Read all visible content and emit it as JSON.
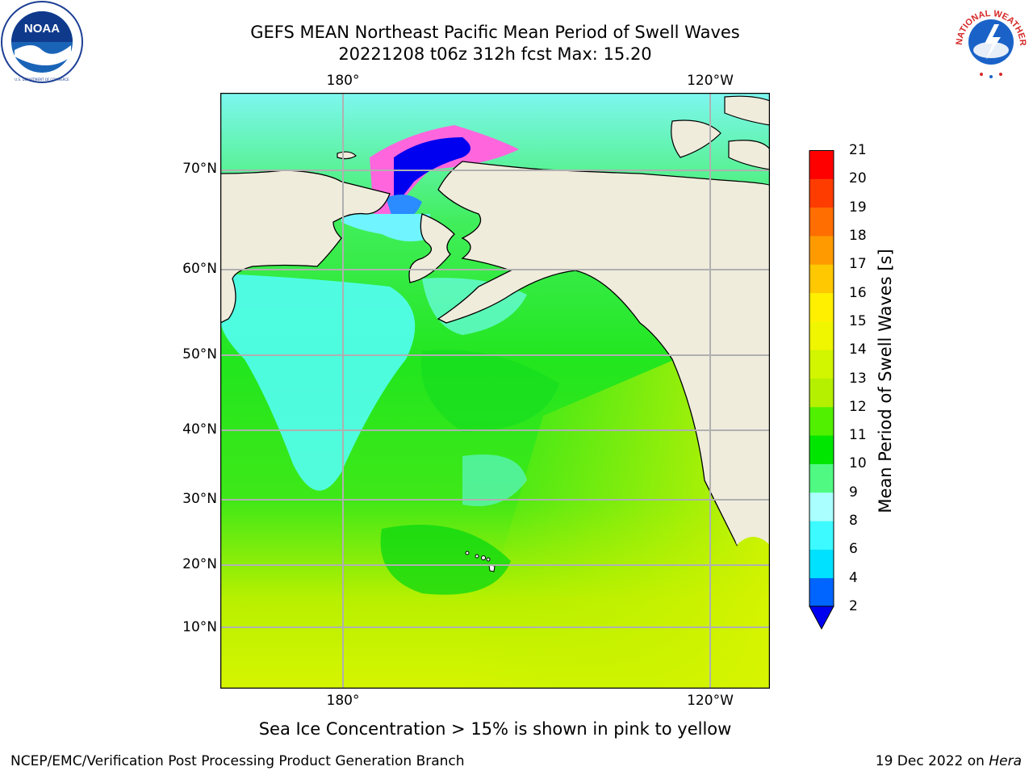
{
  "title": {
    "line1": "GEFS MEAN Northeast Pacific Mean Period of Swell Waves",
    "line2": "20221208 t06z 312h fcst   Max: 15.20"
  },
  "logos": {
    "noaa": {
      "text": "NOAA",
      "ring_text": "NATIONAL OCEANIC AND ATMOSPHERIC ADMINISTRATION · U.S. DEPARTMENT OF COMMERCE",
      "icon": "noaa-seagull-logo"
    },
    "nws": {
      "ring_text": "NATIONAL WEATHER SERVICE",
      "icon": "nws-cloud-lightning-logo"
    }
  },
  "map": {
    "lon_top": [
      "180°",
      "120°W"
    ],
    "lon_bottom": [
      "180°",
      "120°W"
    ],
    "lat_labels": [
      "70°N",
      "60°N",
      "50°N",
      "40°N",
      "30°N",
      "20°N",
      "10°N"
    ],
    "land_color": "#efecdc",
    "ocean_note": "Sea Ice Concentration > 15% is shown in pink to yellow"
  },
  "colorbar": {
    "label": "Mean Period of Swell Waves [s]",
    "ticks": [
      "2",
      "4",
      "6",
      "8",
      "9",
      "10",
      "11",
      "12",
      "13",
      "14",
      "15",
      "16",
      "17",
      "18",
      "19",
      "20",
      "21"
    ],
    "colors": [
      "#0064ff",
      "#00e1ff",
      "#3cfaff",
      "#aaffff",
      "#50fa82",
      "#00e600",
      "#50f000",
      "#b4f000",
      "#d2f500",
      "#f0f500",
      "#fff000",
      "#ffc800",
      "#ff9b00",
      "#ff6e00",
      "#ff3c00",
      "#ff0000"
    ],
    "extend_color": "#0000f0"
  },
  "footer": {
    "left": "NCEP/EMC/Verification Post Processing Product Generation Branch",
    "date": "19 Dec 2022 on ",
    "machine": "Hera"
  }
}
